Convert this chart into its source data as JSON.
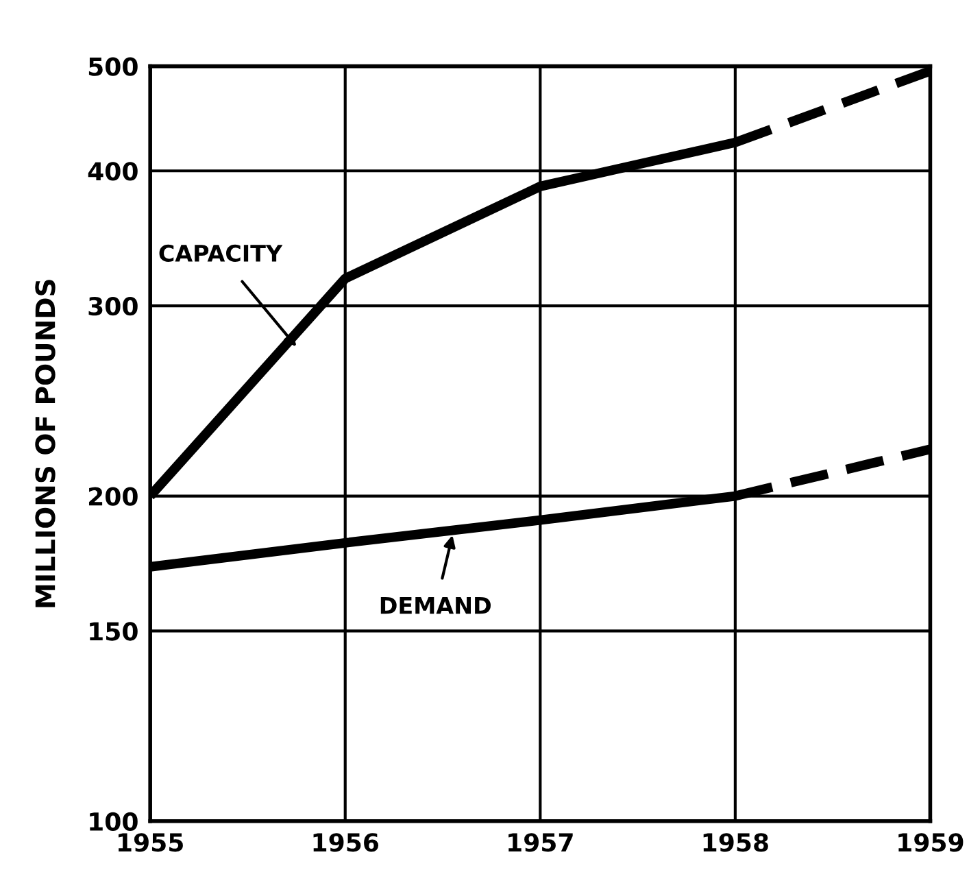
{
  "chart_data": {
    "type": "line",
    "ylabel": "MILLIONS OF POUNDS",
    "log": true,
    "grid": true,
    "marker": "none",
    "xlim": [
      1955,
      1959
    ],
    "xticks": [
      1955,
      1956,
      1957,
      1958,
      1959
    ],
    "ylim": [
      100,
      500
    ],
    "yticks": [
      100,
      150,
      200,
      300,
      400,
      500
    ],
    "series": [
      {
        "color": "#000000",
        "line_style": "solid",
        "x": [
          1955,
          1956,
          1957,
          1958
        ],
        "values": [
          200,
          318,
          387,
          425
        ]
      },
      {
        "color": "#000000",
        "line_style": "dashed",
        "x": [
          1958,
          1959
        ],
        "values": [
          425,
          495
        ]
      },
      {
        "color": "#000000",
        "line_style": "solid",
        "x": [
          1955,
          1956,
          1957,
          1958
        ],
        "values": [
          172,
          181,
          190,
          200
        ]
      },
      {
        "color": "#000000",
        "line_style": "dashed",
        "x": [
          1958,
          1959
        ],
        "values": [
          200,
          221
        ]
      }
    ],
    "annotations": [
      {
        "text": "CAPACITY",
        "x": 1955.75,
        "y": 275
      },
      {
        "text": "DEMAND",
        "x": 1956.55,
        "y": 184
      }
    ]
  }
}
